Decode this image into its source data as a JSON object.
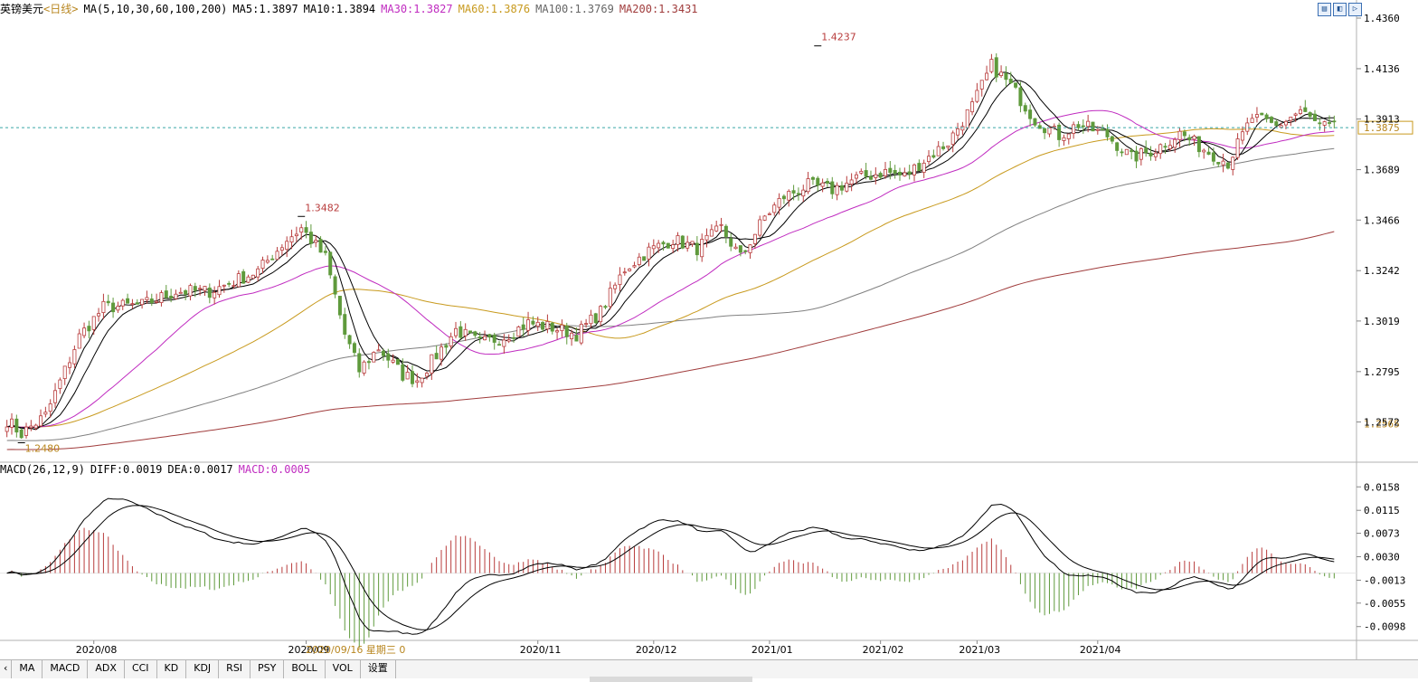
{
  "header": {
    "instrument": "英镑美元",
    "period": "<日线>",
    "ma_label": "MA(5,10,30,60,100,200)",
    "ma5": "MA5:1.3897",
    "ma10": "MA10:1.3894",
    "ma30": "MA30:1.3827",
    "ma60": "MA60:1.3876",
    "ma100": "MA100:1.3769",
    "ma200": "MA200:1.3431"
  },
  "macd_header": {
    "label": "MACD(26,12,9)",
    "diff": "DIFF:0.0019",
    "dea": "DEA:0.0017",
    "macd": "MACD:0.0005"
  },
  "cursor_label": "2020/09/16 星期三 0",
  "tabs": [
    "MA",
    "MACD",
    "ADX",
    "CCI",
    "KD",
    "KDJ",
    "RSI",
    "PSY",
    "BOLL",
    "VOL",
    "设置"
  ],
  "colors": {
    "up": "#b83c3c",
    "down": "#5f9a3c",
    "ma5": "#000000",
    "ma10": "#000000",
    "ma30": "#c02cc0",
    "ma60": "#c89a1e",
    "ma100": "#808080",
    "ma200": "#a03c3c",
    "current_line": "#3aa6a6"
  },
  "chart_data": {
    "type": "candlestick",
    "price_axis_ticks": [
      "1.4360",
      "1.4136",
      "1.3913",
      "1.3689",
      "1.3466",
      "1.3242",
      "1.3019",
      "1.2795",
      "1.2572"
    ],
    "price_range": [
      1.247,
      1.436
    ],
    "current_price": "1.3875",
    "low_marker_price": "1.2565",
    "annotations": [
      {
        "label": "1.2480",
        "x_index": 3,
        "value": 1.248
      },
      {
        "label": "1.3482",
        "x_index": 61,
        "value": 1.3482
      },
      {
        "label": "1.4237",
        "x_index": 168,
        "value": 1.4237
      }
    ],
    "x_axis_ticks": [
      {
        "label": "2020/08",
        "index": 18
      },
      {
        "label": "2020/09",
        "index": 62
      },
      {
        "label": "2020/11",
        "index": 110
      },
      {
        "label": "2020/12",
        "index": 134
      },
      {
        "label": "2021/01",
        "index": 158
      },
      {
        "label": "2021/02",
        "index": 181
      },
      {
        "label": "2021/03",
        "index": 201
      },
      {
        "label": "2021/04",
        "index": 226
      }
    ],
    "close_anchors": [
      [
        0,
        1.258
      ],
      [
        3,
        1.252
      ],
      [
        8,
        1.26
      ],
      [
        15,
        1.295
      ],
      [
        20,
        1.308
      ],
      [
        28,
        1.309
      ],
      [
        35,
        1.315
      ],
      [
        42,
        1.315
      ],
      [
        52,
        1.324
      ],
      [
        58,
        1.338
      ],
      [
        61,
        1.343
      ],
      [
        66,
        1.33
      ],
      [
        70,
        1.296
      ],
      [
        73,
        1.28
      ],
      [
        77,
        1.29
      ],
      [
        82,
        1.278
      ],
      [
        85,
        1.276
      ],
      [
        88,
        1.284
      ],
      [
        93,
        1.298
      ],
      [
        98,
        1.292
      ],
      [
        103,
        1.295
      ],
      [
        108,
        1.301
      ],
      [
        113,
        1.299
      ],
      [
        118,
        1.296
      ],
      [
        123,
        1.306
      ],
      [
        128,
        1.325
      ],
      [
        133,
        1.333
      ],
      [
        138,
        1.338
      ],
      [
        143,
        1.334
      ],
      [
        148,
        1.343
      ],
      [
        152,
        1.33
      ],
      [
        157,
        1.348
      ],
      [
        161,
        1.357
      ],
      [
        166,
        1.362
      ],
      [
        171,
        1.36
      ],
      [
        176,
        1.365
      ],
      [
        182,
        1.368
      ],
      [
        186,
        1.366
      ],
      [
        190,
        1.373
      ],
      [
        195,
        1.381
      ],
      [
        200,
        1.397
      ],
      [
        204,
        1.415
      ],
      [
        208,
        1.406
      ],
      [
        213,
        1.391
      ],
      [
        218,
        1.384
      ],
      [
        222,
        1.389
      ],
      [
        228,
        1.384
      ],
      [
        233,
        1.374
      ],
      [
        238,
        1.378
      ],
      [
        243,
        1.385
      ],
      [
        248,
        1.378
      ],
      [
        253,
        1.372
      ],
      [
        258,
        1.392
      ],
      [
        263,
        1.388
      ],
      [
        268,
        1.395
      ],
      [
        272,
        1.388
      ],
      [
        275,
        1.3875
      ]
    ],
    "bar_count": 276,
    "macd": {
      "axis_ticks": [
        "0.0158",
        "0.0115",
        "0.0073",
        "0.0030",
        "-0.0013",
        "-0.0055",
        "-0.0098"
      ],
      "range": [
        -0.012,
        0.0175
      ]
    }
  }
}
